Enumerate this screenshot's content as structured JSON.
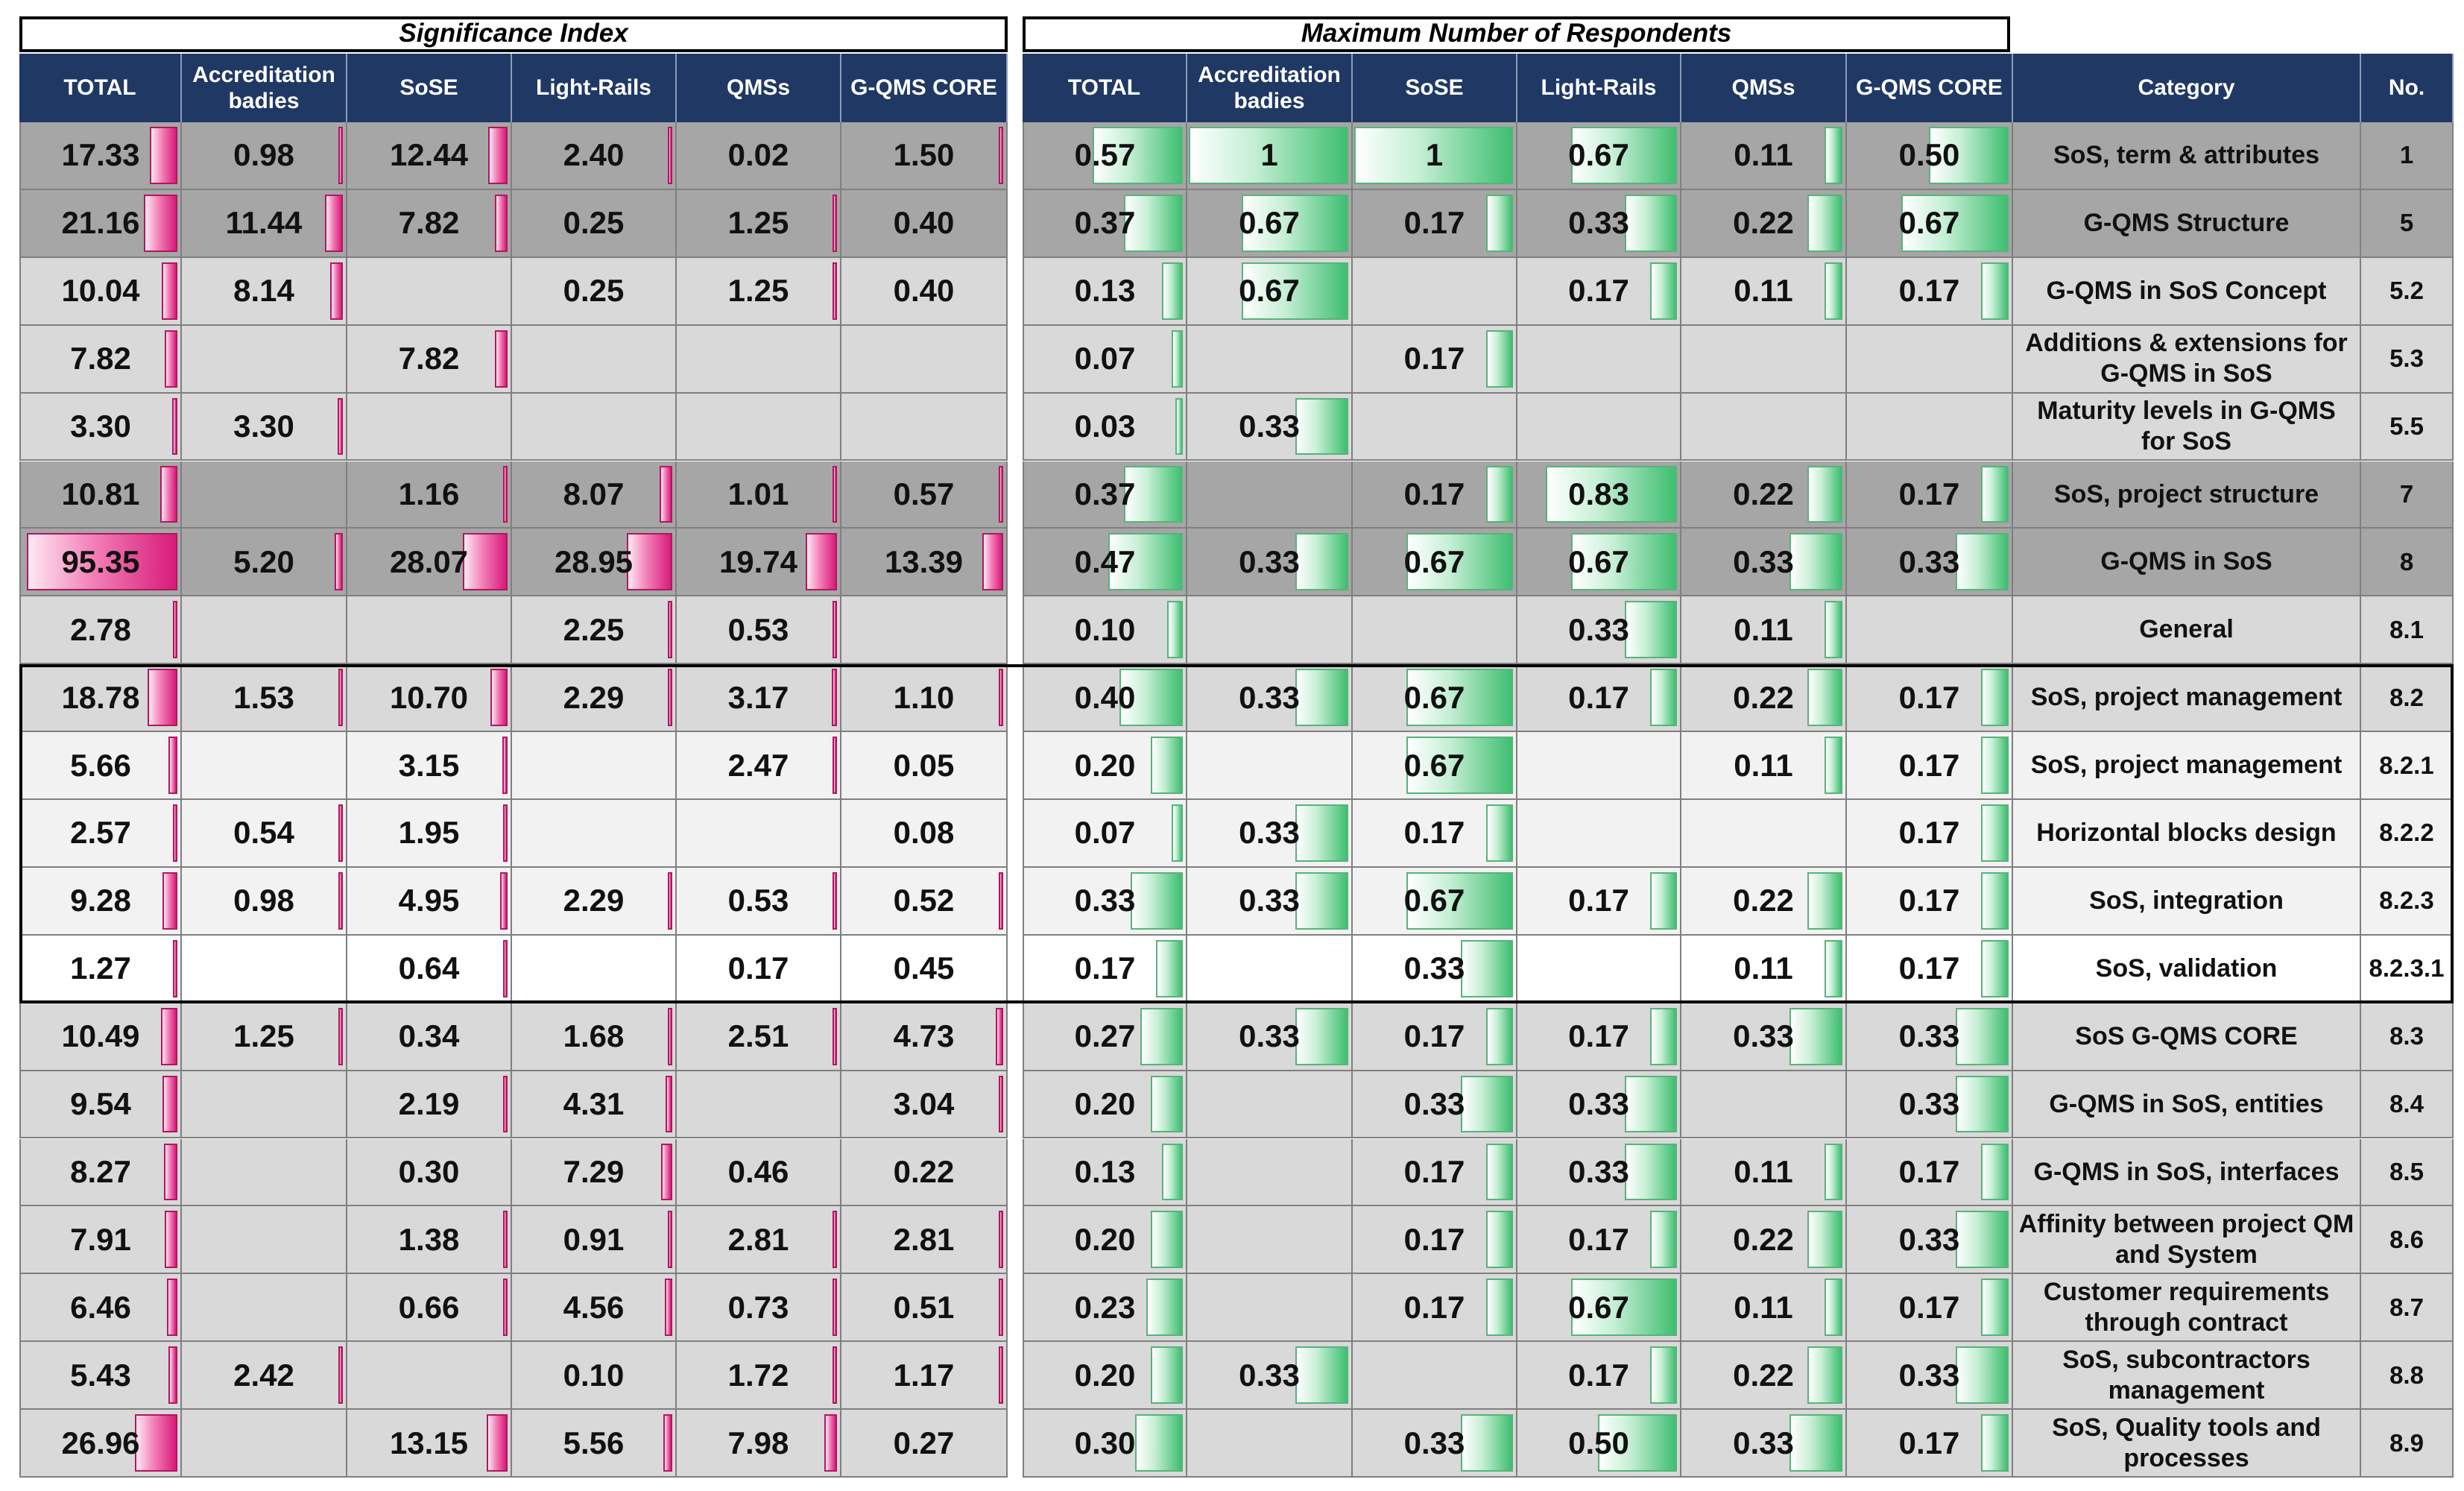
{
  "titles": {
    "significance": "Significance Index",
    "respondents": "Maximum Number of Respondents"
  },
  "columns": {
    "si": [
      "TOTAL",
      "Accreditation badies",
      "SoSE",
      "Light-Rails",
      "QMSs",
      "G-QMS CORE"
    ],
    "nr": [
      "TOTAL",
      "Accreditation badies",
      "SoSE",
      "Light-Rails",
      "QMSs",
      "G-QMS CORE"
    ],
    "category": "Category",
    "no": "No."
  },
  "colors": {
    "header": "#1f3864",
    "si_bar": "#e2338d",
    "nr_bar": "#3fbf71",
    "dark_row": "#a6a6a6",
    "mid_row": "#d9d9d9",
    "light_row": "#f2f2f2"
  },
  "chart_data": {
    "type": "table",
    "rows": [
      {
        "category": "SoS, term & attributes",
        "no": "1",
        "shade": "dark",
        "si": [
          "17.33",
          "0.98",
          "12.44",
          "2.40",
          "0.02",
          "1.50"
        ],
        "nr": [
          "0.57",
          "1",
          "1",
          "0.67",
          "0.11",
          "0.50"
        ]
      },
      {
        "category": "G-QMS Structure",
        "no": "5",
        "shade": "dark",
        "si": [
          "21.16",
          "11.44",
          "7.82",
          "0.25",
          "1.25",
          "0.40"
        ],
        "nr": [
          "0.37",
          "0.67",
          "0.17",
          "0.33",
          "0.22",
          "0.67"
        ]
      },
      {
        "category": "G-QMS in SoS Concept",
        "no": "5.2",
        "shade": "mid",
        "si": [
          "10.04",
          "8.14",
          "",
          "0.25",
          "1.25",
          "0.40"
        ],
        "nr": [
          "0.13",
          "0.67",
          "",
          "0.17",
          "0.11",
          "0.17"
        ]
      },
      {
        "category": "Additions & extensions for G-QMS in SoS",
        "no": "5.3",
        "shade": "mid",
        "si": [
          "7.82",
          "",
          "7.82",
          "",
          "",
          ""
        ],
        "nr": [
          "0.07",
          "",
          "0.17",
          "",
          "",
          ""
        ]
      },
      {
        "category": "Maturity levels in G-QMS for SoS",
        "no": "5.5",
        "shade": "mid",
        "si": [
          "3.30",
          "3.30",
          "",
          "",
          "",
          ""
        ],
        "nr": [
          "0.03",
          "0.33",
          "",
          "",
          "",
          ""
        ]
      },
      {
        "category": "SoS, project structure",
        "no": "7",
        "shade": "dark",
        "si": [
          "10.81",
          "",
          "1.16",
          "8.07",
          "1.01",
          "0.57"
        ],
        "nr": [
          "0.37",
          "",
          "0.17",
          "0.83",
          "0.22",
          "0.17"
        ]
      },
      {
        "category": "G-QMS in SoS",
        "no": "8",
        "shade": "dark",
        "si": [
          "95.35",
          "5.20",
          "28.07",
          "28.95",
          "19.74",
          "13.39"
        ],
        "nr": [
          "0.47",
          "0.33",
          "0.67",
          "0.67",
          "0.33",
          "0.33"
        ]
      },
      {
        "category": "General",
        "no": "8.1",
        "shade": "mid",
        "si": [
          "2.78",
          "",
          "",
          "2.25",
          "0.53",
          ""
        ],
        "nr": [
          "0.10",
          "",
          "",
          "0.33",
          "0.11",
          ""
        ]
      },
      {
        "category": "SoS, project management",
        "no": "8.2",
        "shade": "mid",
        "si": [
          "18.78",
          "1.53",
          "10.70",
          "2.29",
          "3.17",
          "1.10"
        ],
        "nr": [
          "0.40",
          "0.33",
          "0.67",
          "0.17",
          "0.22",
          "0.17"
        ]
      },
      {
        "category": "SoS, project management",
        "no": "8.2.1",
        "shade": "light",
        "si": [
          "5.66",
          "",
          "3.15",
          "",
          "2.47",
          "0.05"
        ],
        "nr": [
          "0.20",
          "",
          "0.67",
          "",
          "0.11",
          "0.17"
        ]
      },
      {
        "category": "Horizontal blocks design",
        "no": "8.2.2",
        "shade": "light",
        "si": [
          "2.57",
          "0.54",
          "1.95",
          "",
          "",
          "0.08"
        ],
        "nr": [
          "0.07",
          "0.33",
          "0.17",
          "",
          "",
          "0.17"
        ]
      },
      {
        "category": "SoS, integration",
        "no": "8.2.3",
        "shade": "light",
        "si": [
          "9.28",
          "0.98",
          "4.95",
          "2.29",
          "0.53",
          "0.52"
        ],
        "nr": [
          "0.33",
          "0.33",
          "0.67",
          "0.17",
          "0.22",
          "0.17"
        ]
      },
      {
        "category": "SoS, validation",
        "no": "8.2.3.1",
        "shade": "white",
        "si": [
          "1.27",
          "",
          "0.64",
          "",
          "0.17",
          "0.45"
        ],
        "nr": [
          "0.17",
          "",
          "0.33",
          "",
          "0.11",
          "0.17"
        ]
      },
      {
        "category": "SoS G-QMS CORE",
        "no": "8.3",
        "shade": "mid",
        "si": [
          "10.49",
          "1.25",
          "0.34",
          "1.68",
          "2.51",
          "4.73"
        ],
        "nr": [
          "0.27",
          "0.33",
          "0.17",
          "0.17",
          "0.33",
          "0.33"
        ]
      },
      {
        "category": "G-QMS in SoS, entities",
        "no": "8.4",
        "shade": "mid",
        "si": [
          "9.54",
          "",
          "2.19",
          "4.31",
          "",
          "3.04"
        ],
        "nr": [
          "0.20",
          "",
          "0.33",
          "0.33",
          "",
          "0.33"
        ]
      },
      {
        "category": "G-QMS in SoS, interfaces",
        "no": "8.5",
        "shade": "mid",
        "si": [
          "8.27",
          "",
          "0.30",
          "7.29",
          "0.46",
          "0.22"
        ],
        "nr": [
          "0.13",
          "",
          "0.17",
          "0.33",
          "0.11",
          "0.17"
        ]
      },
      {
        "category": "Affinity between project QM  and System",
        "no": "8.6",
        "shade": "mid",
        "si": [
          "7.91",
          "",
          "1.38",
          "0.91",
          "2.81",
          "2.81"
        ],
        "nr": [
          "0.20",
          "",
          "0.17",
          "0.17",
          "0.22",
          "0.33"
        ]
      },
      {
        "category": "Customer requirements through contract",
        "no": "8.7",
        "shade": "mid",
        "si": [
          "6.46",
          "",
          "0.66",
          "4.56",
          "0.73",
          "0.51"
        ],
        "nr": [
          "0.23",
          "",
          "0.17",
          "0.67",
          "0.11",
          "0.17"
        ]
      },
      {
        "category": "SoS, subcontractors management",
        "no": "8.8",
        "shade": "mid",
        "si": [
          "5.43",
          "2.42",
          "",
          "0.10",
          "1.72",
          "1.17"
        ],
        "nr": [
          "0.20",
          "0.33",
          "",
          "0.17",
          "0.22",
          "0.33"
        ]
      },
      {
        "category": "SoS, Quality tools and processes",
        "no": "8.9",
        "shade": "mid",
        "si": [
          "26.96",
          "",
          "13.15",
          "5.56",
          "7.98",
          "0.27"
        ],
        "nr": [
          "0.30",
          "",
          "0.33",
          "0.50",
          "0.33",
          "0.17"
        ]
      }
    ]
  }
}
